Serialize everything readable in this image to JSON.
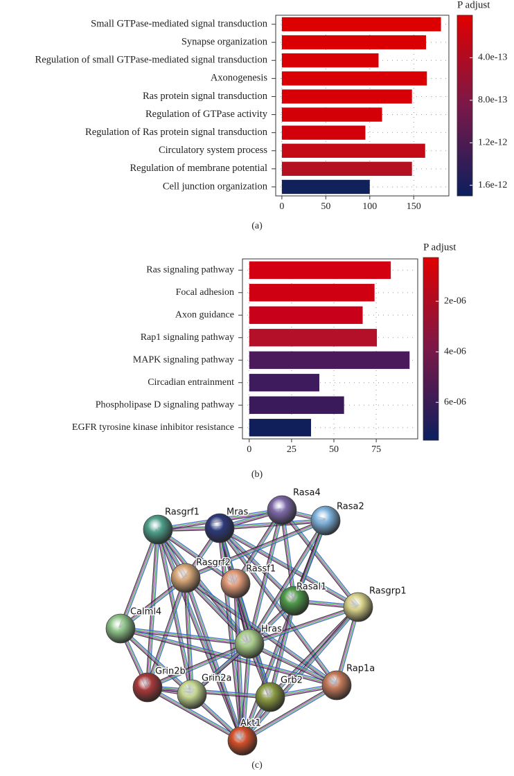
{
  "chart_data": [
    {
      "type": "barh",
      "caption": "(a)",
      "categories": [
        "Small GTPase-mediated signal transduction",
        "Synapse organization",
        "Regulation of small GTPase-mediated signal transduction",
        "Axonogenesis",
        "Ras protein signal transduction",
        "Regulation of GTPase activity",
        "Regulation of Ras protein signal transduction",
        "Circulatory system process",
        "Regulation of membrane potential",
        "Cell junction organization"
      ],
      "values": [
        181,
        164,
        110,
        165,
        148,
        114,
        95,
        163,
        148,
        100
      ],
      "colors": [
        "#dc0000",
        "#da0002",
        "#d80004",
        "#d80004",
        "#d60006",
        "#d40008",
        "#d2000a",
        "#c40a16",
        "#b4101f",
        "#10215c"
      ],
      "xlim": [
        -7,
        190
      ],
      "xticks": [
        0,
        50,
        100,
        150
      ],
      "grid": true,
      "colorbar": {
        "title": "P adjust",
        "lim": [
          0,
          1.7e-12
        ],
        "colors": [
          "#e00000",
          "#7a1848",
          "#0c1f5e"
        ],
        "ticks": [
          {
            "value": 4e-13,
            "label": "4.0e-13"
          },
          {
            "value": 8e-13,
            "label": "8.0e-13"
          },
          {
            "value": 1.2e-12,
            "label": "1.2e-12"
          },
          {
            "value": 1.6e-12,
            "label": "1.6e-12"
          }
        ]
      }
    },
    {
      "type": "barh",
      "caption": "(b)",
      "categories": [
        "Ras signaling pathway",
        "Focal adhesion",
        "Axon guidance",
        "Rap1 signaling pathway",
        "MAPK signaling pathway",
        "Circadian entrainment",
        "Phospholipase D signaling pathway",
        "EGFR tyrosine kinase inhibitor resistance"
      ],
      "values": [
        83.6,
        74,
        67,
        75.4,
        94.7,
        41.4,
        56,
        36.5
      ],
      "colors": [
        "#d20010",
        "#cf0012",
        "#c8001a",
        "#b5102a",
        "#4a1a5a",
        "#3e1b5c",
        "#3a1a5a",
        "#101e5a"
      ],
      "xlim": [
        -4,
        99.5
      ],
      "xticks": [
        0,
        25,
        50,
        75
      ],
      "grid": true,
      "colorbar": {
        "title": "P adjust",
        "lim": [
          2.7e-07,
          7.5e-06
        ],
        "colors": [
          "#e00000",
          "#7a1848",
          "#0c1f5e"
        ],
        "ticks": [
          {
            "value": 2e-06,
            "label": "2e-06"
          },
          {
            "value": 4e-06,
            "label": "4e-06"
          },
          {
            "value": 6e-06,
            "label": "6e-06"
          }
        ]
      }
    }
  ],
  "network": {
    "caption": "(c)",
    "nodes": [
      {
        "label": "Rasgrf1"
      },
      {
        "label": "Mras"
      },
      {
        "label": "Rasa4"
      },
      {
        "label": "Rasa2"
      },
      {
        "label": "Rasgrf2"
      },
      {
        "label": "Rassf1"
      },
      {
        "label": "Rasal1"
      },
      {
        "label": "Rasgrp1"
      },
      {
        "label": "Calml4"
      },
      {
        "label": "Hras"
      },
      {
        "label": "Grin2b"
      },
      {
        "label": "Grin2a"
      },
      {
        "label": "Grb2"
      },
      {
        "label": "Rap1a"
      },
      {
        "label": "Akt1"
      }
    ]
  }
}
